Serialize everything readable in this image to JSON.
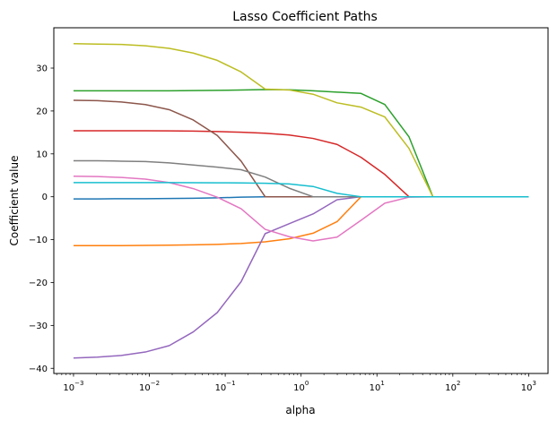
{
  "chart_data": {
    "type": "line",
    "title": "Lasso Coefficient Paths",
    "xlabel": "alpha",
    "ylabel": "Coefficient value",
    "xscale": "log",
    "xlim": [
      0.00055,
      1800
    ],
    "ylim": [
      -41.2,
      39.4
    ],
    "grid": false,
    "legend": "none",
    "x_ticks": [
      {
        "value": 0.001,
        "base": "10",
        "exp": "−3"
      },
      {
        "value": 0.01,
        "base": "10",
        "exp": "−2"
      },
      {
        "value": 0.1,
        "base": "10",
        "exp": "−1"
      },
      {
        "value": 1,
        "base": "10",
        "exp": "0"
      },
      {
        "value": 10,
        "base": "10",
        "exp": "1"
      },
      {
        "value": 100,
        "base": "10",
        "exp": "2"
      },
      {
        "value": 1000,
        "base": "10",
        "exp": "3"
      }
    ],
    "y_ticks": [
      {
        "value": -40,
        "label": "−40"
      },
      {
        "value": -30,
        "label": "−30"
      },
      {
        "value": -20,
        "label": "−20"
      },
      {
        "value": -10,
        "label": "−10"
      },
      {
        "value": 0,
        "label": "0"
      },
      {
        "value": 10,
        "label": "10"
      },
      {
        "value": 20,
        "label": "20"
      },
      {
        "value": 30,
        "label": "30"
      }
    ],
    "x": [
      0.001,
      0.00207,
      0.00428,
      0.00886,
      0.0183,
      0.0379,
      0.0785,
      0.162,
      0.336,
      0.695,
      1.44,
      2.98,
      6.16,
      12.7,
      26.4,
      54.6,
      113,
      234,
      483,
      1000
    ],
    "series": [
      {
        "color": "#1f77b4",
        "values": [
          -0.5,
          -0.5,
          -0.45,
          -0.45,
          -0.4,
          -0.35,
          -0.25,
          -0.1,
          0,
          0,
          0,
          0,
          0,
          0,
          0,
          0,
          0,
          0,
          0,
          0
        ]
      },
      {
        "color": "#ff7f0e",
        "values": [
          -11.4,
          -11.4,
          -11.4,
          -11.35,
          -11.3,
          -11.2,
          -11.1,
          -10.9,
          -10.5,
          -9.8,
          -8.5,
          -5.8,
          0,
          0,
          0,
          0,
          0,
          0,
          0,
          0
        ]
      },
      {
        "color": "#2ca02c",
        "values": [
          24.7,
          24.7,
          24.7,
          24.7,
          24.7,
          24.75,
          24.8,
          24.9,
          25.0,
          24.95,
          24.7,
          24.4,
          24.1,
          21.5,
          14.0,
          0,
          0,
          0,
          0,
          0
        ]
      },
      {
        "color": "#d62728",
        "values": [
          15.4,
          15.4,
          15.4,
          15.4,
          15.35,
          15.3,
          15.2,
          15.05,
          14.8,
          14.4,
          13.6,
          12.2,
          9.2,
          5.2,
          0,
          0,
          0,
          0,
          0,
          0
        ]
      },
      {
        "color": "#9467bd",
        "values": [
          -37.6,
          -37.4,
          -37.0,
          -36.2,
          -34.7,
          -31.5,
          -27.0,
          -19.8,
          -8.6,
          -6.3,
          -4.0,
          -0.7,
          0,
          0,
          0,
          0,
          0,
          0,
          0,
          0
        ]
      },
      {
        "color": "#8c564b",
        "values": [
          22.5,
          22.4,
          22.1,
          21.5,
          20.3,
          17.9,
          14.3,
          8.3,
          0,
          0,
          0,
          0,
          0,
          0,
          0,
          0,
          0,
          0,
          0,
          0
        ]
      },
      {
        "color": "#e377c2",
        "values": [
          4.8,
          4.7,
          4.5,
          4.1,
          3.3,
          1.9,
          -0.1,
          -2.8,
          -7.6,
          -9.3,
          -10.3,
          -9.4,
          -5.5,
          -1.5,
          -0.1,
          0,
          0,
          0,
          0,
          0
        ]
      },
      {
        "color": "#7f7f7f",
        "values": [
          8.4,
          8.4,
          8.3,
          8.2,
          7.9,
          7.4,
          6.9,
          6.3,
          4.6,
          2.0,
          0,
          0,
          0,
          0,
          0,
          0,
          0,
          0,
          0,
          0
        ]
      },
      {
        "color": "#bcbd22",
        "values": [
          35.7,
          35.6,
          35.5,
          35.2,
          34.6,
          33.5,
          31.8,
          29.1,
          25.1,
          24.9,
          23.9,
          21.9,
          20.9,
          18.6,
          11.3,
          0,
          0,
          0,
          0,
          0
        ]
      },
      {
        "color": "#17becf",
        "values": [
          3.3,
          3.3,
          3.3,
          3.3,
          3.3,
          3.28,
          3.26,
          3.22,
          3.15,
          3.0,
          2.4,
          0.8,
          0,
          0,
          0,
          0,
          0,
          0,
          0,
          0
        ]
      }
    ]
  }
}
